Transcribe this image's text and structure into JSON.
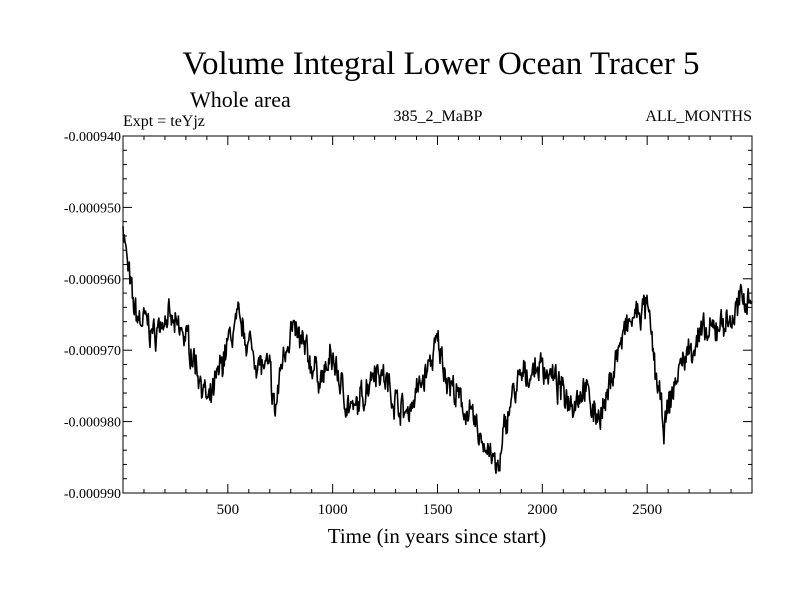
{
  "chart_data": {
    "type": "line",
    "title": "Volume Integral Lower Ocean Tracer 5",
    "subtitle": "Whole area",
    "left_label": "Expt = teYjz",
    "center_label": "385_2_MaBP",
    "right_label": "ALL_MONTHS",
    "xlabel": "Time (in years since start)",
    "ylabel": "",
    "xlim": [
      0,
      3000
    ],
    "ylim": [
      -0.00099,
      -0.00094
    ],
    "x_ticks": [
      500,
      1000,
      1500,
      2000,
      2500
    ],
    "x_tick_labels": [
      "500",
      "1000",
      "1500",
      "2000",
      "2500"
    ],
    "y_ticks": [
      -0.00094,
      -0.00095,
      -0.00096,
      -0.00097,
      -0.00098,
      -0.00099
    ],
    "y_tick_labels": [
      "-0.000940",
      "-0.000950",
      "-0.000960",
      "-0.000970",
      "-0.000980",
      "-0.000990"
    ],
    "grid": false,
    "series": [
      {
        "name": "Volume Integral Lower Ocean Tracer 5",
        "color": "#000000",
        "anchor_x": [
          0,
          20,
          50,
          80,
          110,
          150,
          200,
          250,
          300,
          350,
          380,
          410,
          450,
          500,
          550,
          600,
          650,
          700,
          725,
          760,
          800,
          850,
          900,
          950,
          1000,
          1050,
          1100,
          1150,
          1200,
          1250,
          1300,
          1350,
          1400,
          1450,
          1500,
          1550,
          1600,
          1650,
          1700,
          1750,
          1780,
          1800,
          1820,
          1850,
          1900,
          1950,
          2000,
          2050,
          2100,
          2150,
          2200,
          2250,
          2300,
          2350,
          2400,
          2450,
          2500,
          2550,
          2580,
          2620,
          2660,
          2700,
          2750,
          2800,
          2850,
          2900,
          2950,
          3000
        ],
        "anchor_y": [
          -0.000952,
          -0.000958,
          -0.000964,
          -0.000966,
          -0.000966,
          -0.000968,
          -0.000965,
          -0.000967,
          -0.000968,
          -0.000972,
          -0.000975,
          -0.000978,
          -0.000974,
          -0.000969,
          -0.000966,
          -0.000969,
          -0.000972,
          -0.000973,
          -0.000979,
          -0.000971,
          -0.000967,
          -0.000969,
          -0.000972,
          -0.000974,
          -0.000971,
          -0.000976,
          -0.000979,
          -0.000976,
          -0.000972,
          -0.000974,
          -0.000977,
          -0.000979,
          -0.000976,
          -0.000973,
          -0.000969,
          -0.000974,
          -0.000977,
          -0.000979,
          -0.000982,
          -0.000984,
          -0.000987,
          -0.000986,
          -0.000981,
          -0.000977,
          -0.000974,
          -0.000973,
          -0.000972,
          -0.000974,
          -0.000976,
          -0.000977,
          -0.000975,
          -0.000979,
          -0.000978,
          -0.000971,
          -0.000967,
          -0.000965,
          -0.000964,
          -0.000975,
          -0.000981,
          -0.000976,
          -0.000972,
          -0.00097,
          -0.000968,
          -0.000968,
          -0.000966,
          -0.000966,
          -0.000963,
          -0.000962
        ],
        "sample_step": 3,
        "noise_amplitude": 3.2e-06,
        "noise_seed": 7
      }
    ]
  }
}
